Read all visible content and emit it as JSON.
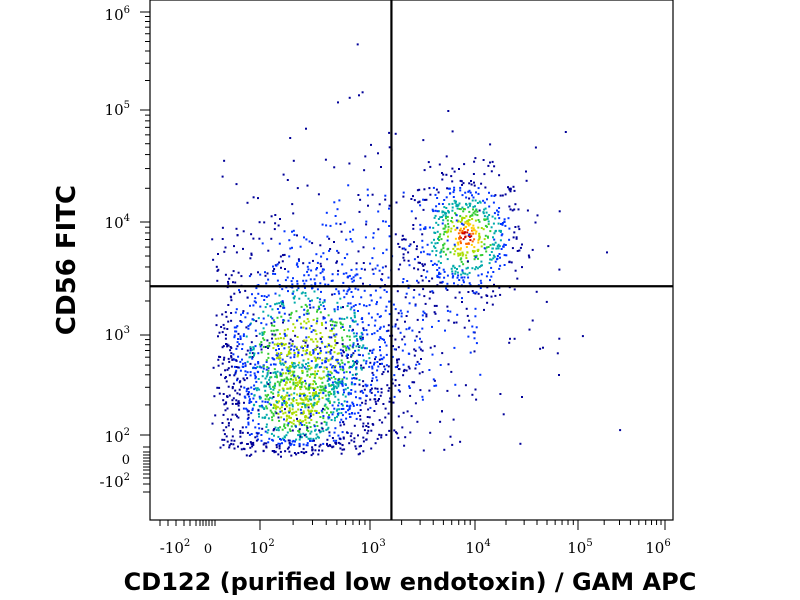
{
  "chart_data": {
    "type": "scatter",
    "title": "",
    "xlabel": "CD122 (purified low endotoxin) / GAM APC",
    "ylabel": "CD56 FITC",
    "x_scale": "biexponential",
    "y_scale": "biexponential",
    "xlim": [
      -300,
      1000000
    ],
    "ylim": [
      -300,
      1000000
    ],
    "x_ticks": [
      {
        "base": "-10",
        "exp": "2",
        "value": -100
      },
      {
        "base": "0",
        "exp": "",
        "value": 0
      },
      {
        "base": "10",
        "exp": "2",
        "value": 100
      },
      {
        "base": "10",
        "exp": "3",
        "value": 1000
      },
      {
        "base": "10",
        "exp": "4",
        "value": 10000
      },
      {
        "base": "10",
        "exp": "5",
        "value": 100000
      },
      {
        "base": "10",
        "exp": "6",
        "value": 1000000
      }
    ],
    "y_ticks": [
      {
        "base": "10",
        "exp": "6",
        "value": 1000000
      },
      {
        "base": "10",
        "exp": "5",
        "value": 100000
      },
      {
        "base": "10",
        "exp": "4",
        "value": 10000
      },
      {
        "base": "10",
        "exp": "3",
        "value": 1000
      },
      {
        "base": "10",
        "exp": "2",
        "value": 100
      },
      {
        "base": "0",
        "exp": "",
        "value": 0
      },
      {
        "base": "-10",
        "exp": "2",
        "value": -100
      }
    ],
    "quadrant_gates": {
      "x": 1600,
      "y": 2700
    },
    "populations": [
      {
        "x": 8000,
        "y": 7500,
        "n": 650,
        "spread": 0.18
      },
      {
        "x": 220,
        "y": 220,
        "n": 900,
        "spread": 0.22
      },
      {
        "x": 260,
        "y": 700,
        "n": 900,
        "spread": 0.3
      },
      {
        "x": 350,
        "y": 1500,
        "n": 350,
        "spread": 0.35
      },
      {
        "x": 1500,
        "y": 2000,
        "n": 300,
        "spread": 0.45
      }
    ],
    "density_colors": [
      "#000099",
      "#0033ff",
      "#00aaaa",
      "#33cc33",
      "#aadd00",
      "#ffcc00",
      "#ff6600",
      "#cc0000"
    ],
    "grid": false,
    "legend": "none"
  }
}
